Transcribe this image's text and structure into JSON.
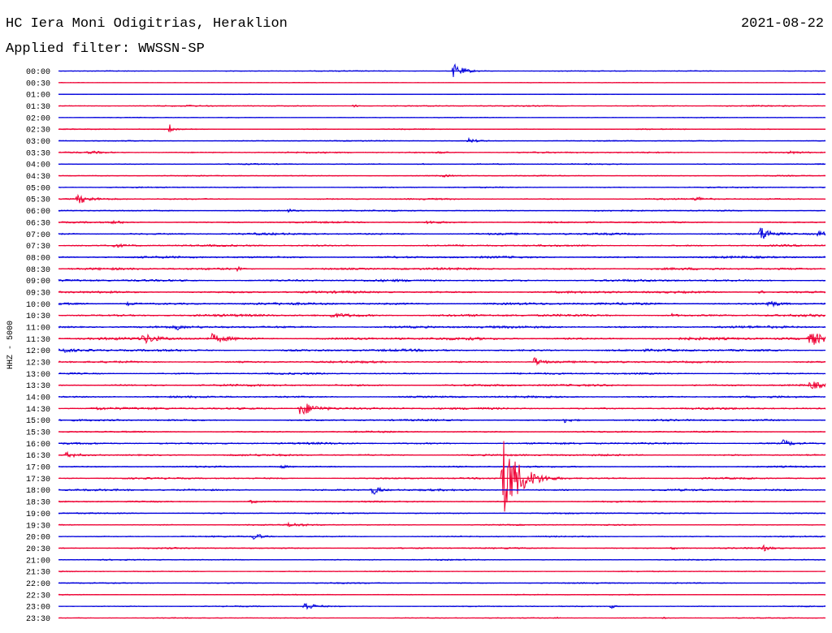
{
  "header": {
    "station": "HC Iera Moni Odigitrias, Heraklion",
    "date": "2021-08-22",
    "filter": "Applied filter: WWSSN-SP"
  },
  "chart_data": {
    "type": "line",
    "title": "HC Iera Moni Odigitrias, Heraklion",
    "ylabel": "HHZ - 5000",
    "trace_colors": [
      "#0000dd",
      "#ee0033"
    ],
    "row_labels": [
      "00:00",
      "00:30",
      "01:00",
      "01:30",
      "02:00",
      "02:30",
      "03:00",
      "03:30",
      "04:00",
      "04:30",
      "05:00",
      "05:30",
      "06:00",
      "06:30",
      "07:00",
      "07:30",
      "08:00",
      "08:30",
      "09:00",
      "09:30",
      "10:00",
      "10:30",
      "11:00",
      "11:30",
      "12:00",
      "12:30",
      "13:00",
      "13:30",
      "14:00",
      "14:30",
      "15:00",
      "15:30",
      "16:00",
      "16:30",
      "17:00",
      "17:30",
      "18:00",
      "18:30",
      "19:00",
      "19:30",
      "20:00",
      "20:30",
      "21:00",
      "21:30",
      "22:00",
      "22:30",
      "23:00",
      "23:30"
    ],
    "rows": [
      {
        "noise": 0.6,
        "events": [
          [
            0.515,
            9,
            0.012
          ]
        ]
      },
      {
        "noise": 0.4,
        "events": []
      },
      {
        "noise": 0.5,
        "events": []
      },
      {
        "noise": 0.8,
        "events": [
          [
            0.385,
            2,
            0.005
          ],
          [
            0.17,
            1.5,
            0.002
          ]
        ]
      },
      {
        "noise": 0.5,
        "events": []
      },
      {
        "noise": 0.7,
        "events": [
          [
            0.145,
            6,
            0.004
          ]
        ]
      },
      {
        "noise": 0.7,
        "events": [
          [
            0.535,
            3,
            0.01
          ]
        ]
      },
      {
        "noise": 1.0,
        "events": [
          [
            0.495,
            1.5,
            0.01
          ],
          [
            0.04,
            1.5,
            0.02
          ],
          [
            0.95,
            1.5,
            0.02
          ]
        ]
      },
      {
        "noise": 0.8,
        "events": [
          [
            0.47,
            1.5,
            0.01
          ]
        ]
      },
      {
        "noise": 0.7,
        "events": [
          [
            0.5,
            1.5,
            0.01
          ]
        ]
      },
      {
        "noise": 0.8,
        "events": []
      },
      {
        "noise": 1.0,
        "events": [
          [
            0.025,
            6,
            0.012
          ],
          [
            0.83,
            3,
            0.01
          ]
        ]
      },
      {
        "noise": 0.9,
        "events": [
          [
            0.3,
            2,
            0.008
          ]
        ]
      },
      {
        "noise": 1.1,
        "events": [
          [
            0.07,
            1.5,
            0.02
          ],
          [
            0.48,
            1.5,
            0.02
          ]
        ]
      },
      {
        "noise": 1.4,
        "events": [
          [
            0.915,
            10,
            0.012
          ],
          [
            0.99,
            3,
            0.01
          ]
        ]
      },
      {
        "noise": 1.2,
        "events": [
          [
            0.07,
            2,
            0.02
          ]
        ]
      },
      {
        "noise": 1.4,
        "events": []
      },
      {
        "noise": 1.5,
        "events": [
          [
            0.234,
            4,
            0.002
          ]
        ]
      },
      {
        "noise": 1.5,
        "events": []
      },
      {
        "noise": 1.5,
        "events": [
          [
            0.915,
            3,
            0.003
          ]
        ]
      },
      {
        "noise": 1.6,
        "events": [
          [
            0.925,
            5,
            0.01
          ],
          [
            0.09,
            2,
            0.01
          ]
        ]
      },
      {
        "noise": 1.6,
        "events": [
          [
            0.355,
            2,
            0.03
          ],
          [
            0.8,
            2,
            0.005
          ]
        ]
      },
      {
        "noise": 1.6,
        "events": [
          [
            0.155,
            4,
            0.003
          ]
        ]
      },
      {
        "noise": 1.8,
        "events": [
          [
            0.11,
            6,
            0.015
          ],
          [
            0.2,
            5,
            0.015
          ],
          [
            0.98,
            9,
            0.015
          ]
        ]
      },
      {
        "noise": 1.6,
        "events": [
          [
            0.0,
            6,
            0.006
          ]
        ]
      },
      {
        "noise": 1.4,
        "events": [
          [
            0.62,
            6,
            0.01
          ]
        ]
      },
      {
        "noise": 1.2,
        "events": []
      },
      {
        "noise": 1.4,
        "events": [
          [
            0.98,
            5,
            0.012
          ]
        ]
      },
      {
        "noise": 1.3,
        "events": []
      },
      {
        "noise": 1.4,
        "events": [
          [
            0.315,
            10,
            0.018
          ],
          [
            0.045,
            2,
            0.015
          ]
        ]
      },
      {
        "noise": 1.2,
        "events": [
          [
            0.66,
            3,
            0.01
          ]
        ]
      },
      {
        "noise": 1.0,
        "events": []
      },
      {
        "noise": 1.3,
        "events": [
          [
            0.945,
            4,
            0.01
          ],
          [
            0.135,
            3,
            0.003
          ]
        ]
      },
      {
        "noise": 1.3,
        "events": [
          [
            0.01,
            3,
            0.02
          ]
        ]
      },
      {
        "noise": 1.0,
        "events": [
          [
            0.29,
            2,
            0.008
          ]
        ]
      },
      {
        "noise": 1.1,
        "events": [
          [
            0.58,
            50,
            0.02
          ]
        ]
      },
      {
        "noise": 1.3,
        "events": [
          [
            0.41,
            7,
            0.007
          ]
        ]
      },
      {
        "noise": 1.0,
        "events": [
          [
            0.25,
            2,
            0.01
          ]
        ]
      },
      {
        "noise": 0.9,
        "events": []
      },
      {
        "noise": 0.9,
        "events": [
          [
            0.3,
            2,
            0.02
          ]
        ]
      },
      {
        "noise": 0.9,
        "events": [
          [
            0.255,
            5,
            0.008
          ]
        ]
      },
      {
        "noise": 0.9,
        "events": [
          [
            0.92,
            4,
            0.006
          ],
          [
            0.8,
            1.5,
            0.01
          ]
        ]
      },
      {
        "noise": 0.8,
        "events": []
      },
      {
        "noise": 0.7,
        "events": []
      },
      {
        "noise": 0.8,
        "events": []
      },
      {
        "noise": 0.7,
        "events": []
      },
      {
        "noise": 0.7,
        "events": [
          [
            0.32,
            6,
            0.012
          ],
          [
            0.72,
            3,
            0.005
          ]
        ]
      },
      {
        "noise": 0.6,
        "events": [
          [
            0.65,
            2,
            0.002
          ],
          [
            0.79,
            1.5,
            0.002
          ]
        ]
      }
    ]
  }
}
